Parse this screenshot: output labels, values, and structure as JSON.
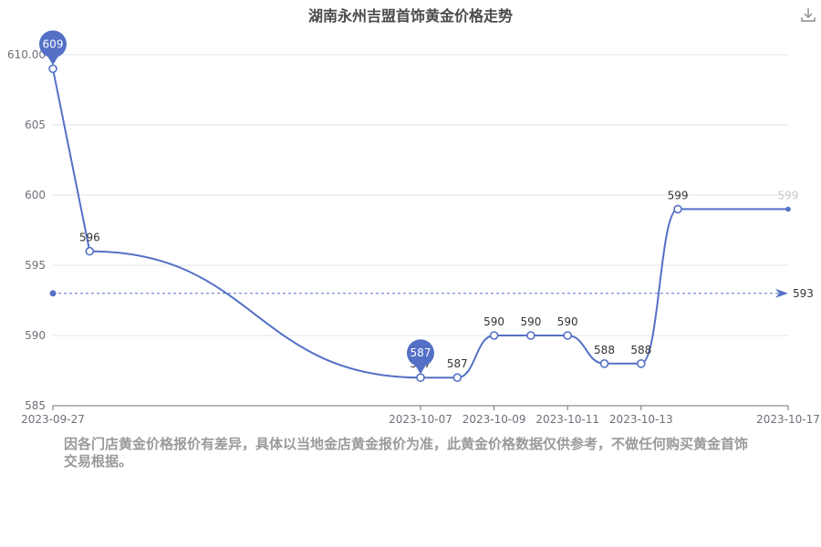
{
  "chart_data": {
    "type": "line",
    "title": "湖南永州吉盟首饰黄金价格走势",
    "x": [
      "2023-09-27",
      "2023-09-28",
      "2023-10-07",
      "2023-10-08",
      "2023-10-09",
      "2023-10-10",
      "2023-10-11",
      "2023-10-12",
      "2023-10-13",
      "2023-10-14",
      "2023-10-17"
    ],
    "x_tick_labels": [
      "2023-09-27",
      "2023-10-07",
      "2023-10-09",
      "2023-10-11",
      "2023-10-13",
      "2023-10-17"
    ],
    "series": [
      {
        "values": [
          609,
          596,
          587,
          587,
          590,
          590,
          590,
          588,
          588,
          599,
          599
        ]
      }
    ],
    "ylim": [
      585,
      610
    ],
    "y_ticks": [
      585,
      590,
      595,
      600,
      605,
      610
    ],
    "y_tick_labels": [
      "585",
      "590",
      "595",
      "600",
      "605",
      "610.00"
    ],
    "data_labels": [
      "",
      "596",
      "587",
      "587",
      "590",
      "590",
      "590",
      "588",
      "588",
      "599",
      "599"
    ],
    "markers": [
      {
        "label": "609",
        "index": 0
      },
      {
        "label": "587",
        "index": 2
      }
    ],
    "mark_line": {
      "value": 593,
      "label": "593"
    },
    "smooth": true,
    "grid": true,
    "line_color": "#5470c6"
  },
  "ui": {
    "download_icon": "download-icon",
    "disclaimer": "因各门店黄金价格报价有差异，具体以当地金店黄金报价为准，此黄金价格数据仅供参考，不做任何购买黄金首饰交易根据。"
  }
}
